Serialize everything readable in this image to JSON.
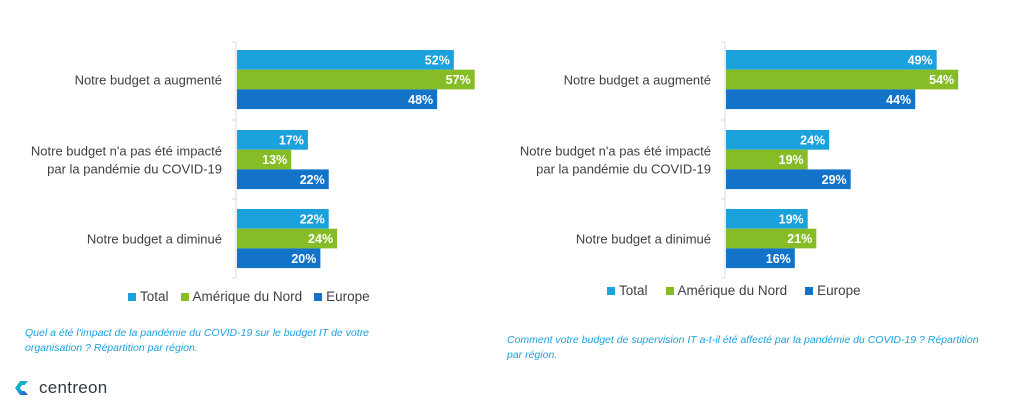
{
  "colors": {
    "total": "#1ba1dc",
    "north_america": "#86bc25",
    "europe": "#1273c9",
    "caption": "#1ba1dc",
    "axis": "#d9d9d9"
  },
  "chart_data": [
    {
      "type": "bar",
      "orientation": "horizontal",
      "categories": [
        "Notre budget a augmenté",
        "Notre budget n'a pas été impacté par la pandémie du COVID-19",
        "Notre budget a diminué"
      ],
      "category_lines": [
        [
          "Notre budget a augmenté"
        ],
        [
          "Notre budget n'a pas été impacté",
          "par la pandémie du COVID-19"
        ],
        [
          "Notre budget a diminué"
        ]
      ],
      "series": [
        {
          "name": "Total",
          "values": [
            52,
            17,
            22
          ],
          "labels": [
            "52%",
            "17%",
            "22%"
          ]
        },
        {
          "name": "Amérique du Nord",
          "values": [
            57,
            13,
            24
          ],
          "labels": [
            "57%",
            "13%",
            "24%"
          ]
        },
        {
          "name": "Europe",
          "values": [
            48,
            22,
            20
          ],
          "labels": [
            "48%",
            "22%",
            "20%"
          ]
        }
      ],
      "xlim": [
        0,
        60
      ],
      "unit": "%",
      "grid": false,
      "legend_position": "bottom",
      "caption": "Quel a été l'impact de la pandémie du COVID-19 sur le budget IT de votre organisation ? Répartition par région."
    },
    {
      "type": "bar",
      "orientation": "horizontal",
      "categories": [
        "Notre budget a augmenté",
        "Notre budget n'a pas été impacté par la pandémie du COVID-19",
        "Notre budget a dinimué"
      ],
      "category_lines": [
        [
          "Notre budget a augmenté"
        ],
        [
          "Notre budget n'a pas été impacté",
          "par la pandémie du COVID-19"
        ],
        [
          "Notre budget a dinimué"
        ]
      ],
      "series": [
        {
          "name": "Total",
          "values": [
            49,
            24,
            19
          ],
          "labels": [
            "49%",
            "24%",
            "19%"
          ]
        },
        {
          "name": "Amérique du Nord",
          "values": [
            54,
            19,
            21
          ],
          "labels": [
            "54%",
            "19%",
            "21%"
          ]
        },
        {
          "name": "Europe",
          "values": [
            44,
            29,
            16
          ],
          "labels": [
            "44%",
            "29%",
            "16%"
          ]
        }
      ],
      "xlim": [
        0,
        60
      ],
      "unit": "%",
      "grid": false,
      "legend_position": "bottom",
      "caption": "Comment votre budget de supervision IT a-t-il été affecté par la pandémie du COVID-19 ? Répartition par région."
    }
  ],
  "legend": [
    "Total",
    "Amérique du Nord",
    "Europe"
  ],
  "captions": {
    "left": "Quel a été l'impact de la pandémie du COVID-19 sur le budget IT de votre organisation ? Répartition par région.",
    "right": "Comment votre budget de supervision IT a-t-il été affecté par la pandémie du COVID-19 ? Répartition par région."
  },
  "logo": {
    "text": "centreon",
    "icon": "centreon-logo-icon"
  }
}
